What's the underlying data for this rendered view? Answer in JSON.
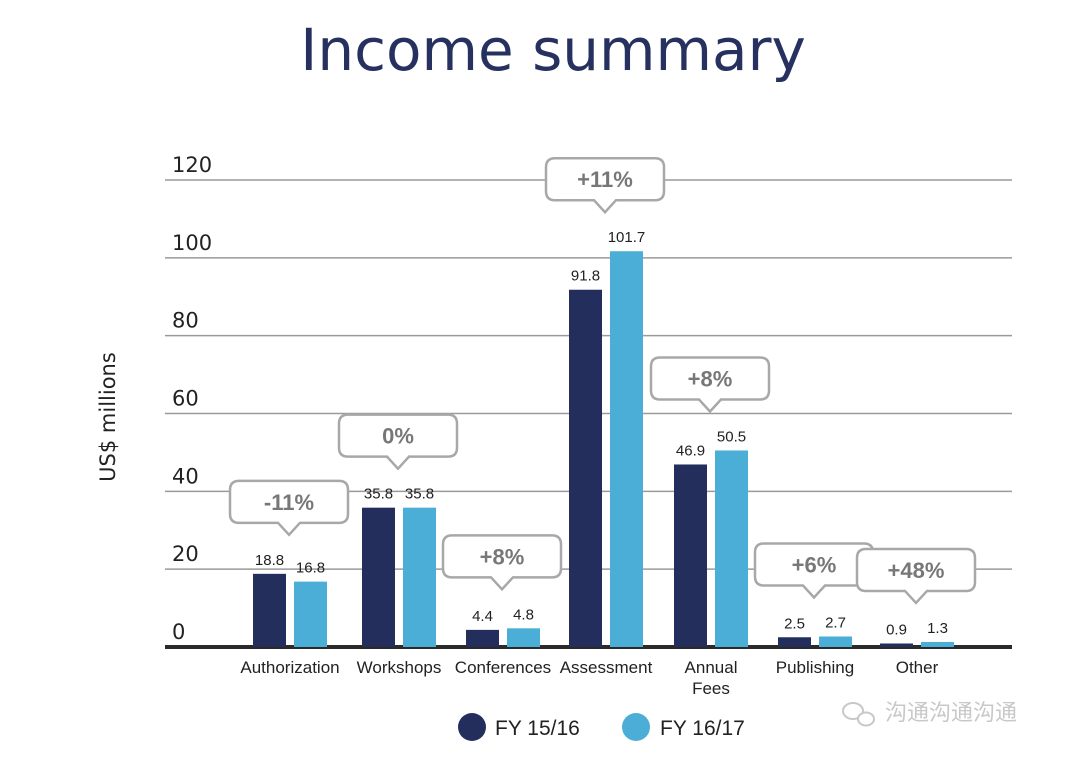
{
  "colors": {
    "series1": "#232e5c",
    "series2": "#4aaed7",
    "title": "#27315f",
    "text": "#222222",
    "grid": "#9a9a9a",
    "axis": "#2a2a2a",
    "callout_border": "#a8a8a8",
    "callout_text": "#777777",
    "watermark": "#c8c8c8"
  },
  "chart_data": {
    "type": "bar",
    "title": "Income summary",
    "ylabel": "US$ millions",
    "xlabel": "",
    "ylim": [
      0,
      120
    ],
    "yticks": [
      0,
      20,
      40,
      60,
      80,
      100,
      120
    ],
    "grid": true,
    "legend_position": "bottom-center",
    "categories": [
      [
        "Authorization"
      ],
      [
        "Workshops"
      ],
      [
        "Conferences"
      ],
      [
        "Assessment"
      ],
      [
        "Annual",
        "Fees"
      ],
      [
        "Publishing"
      ],
      [
        "Other"
      ]
    ],
    "series": [
      {
        "name": "FY 15/16",
        "color_key": "series1",
        "values": [
          18.8,
          35.8,
          4.4,
          91.8,
          46.9,
          2.5,
          0.9
        ]
      },
      {
        "name": "FY 16/17",
        "color_key": "series2",
        "values": [
          16.8,
          35.8,
          4.8,
          101.7,
          50.5,
          2.7,
          1.3
        ]
      }
    ],
    "value_labels": [
      [
        "18.8",
        "35.8",
        "4.4",
        "91.8",
        "46.9",
        "2.5",
        "0.9"
      ],
      [
        "16.8",
        "35.8",
        "4.8",
        "101.7",
        "50.5",
        "2.7",
        "1.3"
      ]
    ],
    "annotations": [
      "-11%",
      "0%",
      "+8%",
      "+11%",
      "+8%",
      "+6%",
      "+48%"
    ]
  },
  "watermark": {
    "text": "沟通沟通沟通",
    "icon": "wechat-icon"
  }
}
